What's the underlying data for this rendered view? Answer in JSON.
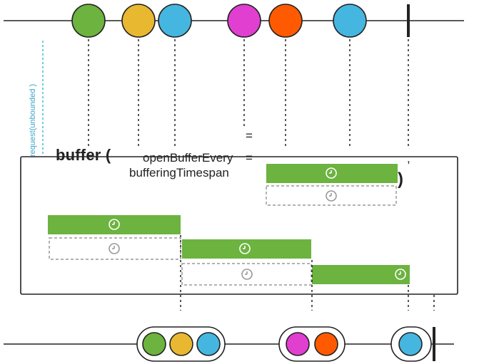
{
  "operator": {
    "name": "buffer (",
    "param1_name": "openBufferEvery",
    "param1_eq": "=",
    "param2_name": "bufferingTimespan",
    "param2_eq": "=",
    "comma": ",",
    "close": ")"
  },
  "request_label": "request(unbounded )",
  "colors": {
    "green": "#6cb33f",
    "yellow": "#e8b830",
    "blue": "#45b6df",
    "magenta": "#e03fd0",
    "orange": "#ff5a00",
    "request_line": "#3bbfcf",
    "outline": "#222222",
    "dashed_box": "#999999"
  },
  "source_stream": {
    "items": [
      {
        "name": "green-marble",
        "color": "green"
      },
      {
        "name": "yellow-marble",
        "color": "yellow"
      },
      {
        "name": "blue-marble",
        "color": "blue"
      },
      {
        "name": "magenta-marble",
        "color": "magenta"
      },
      {
        "name": "orange-marble",
        "color": "orange"
      },
      {
        "name": "blue-marble",
        "color": "blue"
      }
    ],
    "completed": true
  },
  "output_stream": {
    "buffers": [
      {
        "items": [
          "green",
          "yellow",
          "blue"
        ]
      },
      {
        "items": [
          "magenta",
          "orange"
        ]
      },
      {
        "items": [
          "blue"
        ]
      }
    ],
    "completed": true
  },
  "buffer_windows": [
    {
      "type": "open-timer"
    },
    {
      "type": "elapsed-timer"
    }
  ]
}
